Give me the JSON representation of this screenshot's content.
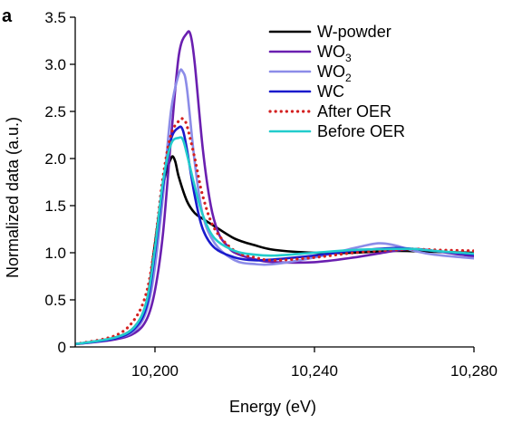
{
  "panel_label": "a",
  "chart_data": {
    "type": "line",
    "xlabel": "Energy (eV)",
    "ylabel": "Normalized data (a.u.)",
    "xlim": [
      10180,
      10280
    ],
    "ylim": [
      0,
      3.5
    ],
    "xticks": [
      10200,
      10240,
      10280
    ],
    "xtick_labels": [
      "10,200",
      "10,240",
      "10,280"
    ],
    "yticks": [
      0,
      0.5,
      1.0,
      1.5,
      2.0,
      2.5,
      3.0,
      3.5
    ],
    "ytick_labels": [
      "0",
      "0.5",
      "1.0",
      "1.5",
      "2.0",
      "2.5",
      "3.0",
      "3.5"
    ],
    "grid": false,
    "legend_position": "top-right",
    "series": [
      {
        "name": "W-powder",
        "color": "#000000",
        "dash": "solid",
        "x": [
          10180,
          10190,
          10195,
          10198,
          10200,
          10202,
          10204,
          10205,
          10206,
          10208,
          10210,
          10212,
          10215,
          10220,
          10225,
          10230,
          10240,
          10250,
          10260,
          10270,
          10280
        ],
        "y": [
          0.03,
          0.1,
          0.22,
          0.5,
          1.1,
          1.7,
          2.0,
          1.98,
          1.8,
          1.55,
          1.42,
          1.36,
          1.28,
          1.15,
          1.08,
          1.03,
          1.0,
          1.0,
          1.02,
          1.01,
          1.0
        ]
      },
      {
        "name": "WO",
        "sub": "3",
        "color": "#6a1fb0",
        "dash": "solid",
        "x": [
          10180,
          10190,
          10195,
          10198,
          10200,
          10202,
          10204,
          10206,
          10208,
          10209,
          10210,
          10212,
          10214,
          10216,
          10218,
          10220,
          10225,
          10230,
          10240,
          10250,
          10260,
          10265,
          10270,
          10280
        ],
        "y": [
          0.03,
          0.08,
          0.15,
          0.3,
          0.6,
          1.2,
          2.2,
          3.1,
          3.33,
          3.3,
          3.0,
          2.1,
          1.5,
          1.2,
          1.08,
          1.0,
          0.93,
          0.9,
          0.9,
          0.95,
          1.02,
          1.04,
          1.02,
          0.96
        ]
      },
      {
        "name": "WO",
        "sub": "2",
        "color": "#8c8ce8",
        "dash": "solid",
        "x": [
          10180,
          10190,
          10195,
          10198,
          10200,
          10202,
          10204,
          10206,
          10207,
          10208,
          10210,
          10212,
          10215,
          10220,
          10225,
          10230,
          10240,
          10250,
          10256,
          10260,
          10265,
          10270,
          10280
        ],
        "y": [
          0.03,
          0.09,
          0.18,
          0.4,
          0.85,
          1.6,
          2.5,
          2.9,
          2.92,
          2.75,
          1.95,
          1.4,
          1.1,
          0.92,
          0.88,
          0.88,
          0.95,
          1.05,
          1.1,
          1.08,
          1.02,
          0.98,
          0.94
        ]
      },
      {
        "name": "WC",
        "color": "#1a1acc",
        "dash": "solid",
        "x": [
          10180,
          10190,
          10195,
          10198,
          10200,
          10202,
          10204,
          10206,
          10207,
          10208,
          10210,
          10212,
          10215,
          10220,
          10225,
          10230,
          10240,
          10250,
          10260,
          10265,
          10270,
          10280
        ],
        "y": [
          0.03,
          0.09,
          0.2,
          0.45,
          1.0,
          1.7,
          2.2,
          2.33,
          2.3,
          2.1,
          1.6,
          1.25,
          1.05,
          0.95,
          0.92,
          0.93,
          0.97,
          1.02,
          1.05,
          1.04,
          1.02,
          0.98
        ]
      },
      {
        "name": "After OER",
        "color": "#d42020",
        "dash": "dotted",
        "x": [
          10180,
          10190,
          10195,
          10198,
          10200,
          10202,
          10204,
          10206,
          10207,
          10208,
          10210,
          10212,
          10215,
          10220,
          10225,
          10230,
          10240,
          10250,
          10260,
          10265,
          10270,
          10280
        ],
        "y": [
          0.03,
          0.12,
          0.3,
          0.6,
          1.1,
          1.8,
          2.25,
          2.4,
          2.42,
          2.35,
          2.0,
          1.6,
          1.25,
          1.02,
          0.95,
          0.92,
          0.95,
          1.0,
          1.03,
          1.04,
          1.03,
          1.02
        ]
      },
      {
        "name": "Before OER",
        "color": "#22cccc",
        "dash": "solid",
        "x": [
          10180,
          10190,
          10195,
          10198,
          10200,
          10202,
          10204,
          10206,
          10207,
          10208,
          10210,
          10212,
          10215,
          10220,
          10225,
          10230,
          10240,
          10250,
          10260,
          10265,
          10270,
          10280
        ],
        "y": [
          0.03,
          0.1,
          0.22,
          0.5,
          1.05,
          1.75,
          2.15,
          2.22,
          2.2,
          2.05,
          1.7,
          1.4,
          1.15,
          1.02,
          0.98,
          0.97,
          1.0,
          1.03,
          1.04,
          1.04,
          1.02,
          0.99
        ]
      }
    ]
  }
}
